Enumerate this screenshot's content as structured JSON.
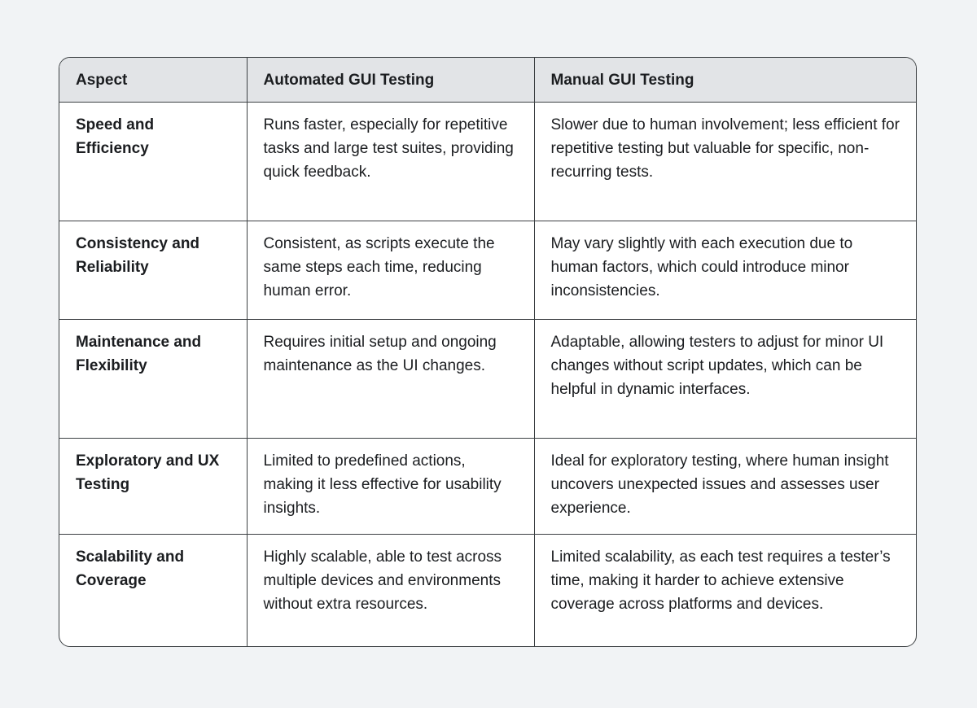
{
  "page": {
    "background_color": "#f1f3f5"
  },
  "table": {
    "colors": {
      "header_bg": "#e2e4e7",
      "body_bg": "#ffffff",
      "border": "#3c4043",
      "text": "#1b1d20"
    },
    "columns": [
      {
        "label": "Aspect"
      },
      {
        "label": "Automated GUI Testing"
      },
      {
        "label": "Manual GUI Testing"
      }
    ],
    "rows": [
      {
        "aspect": "Speed and Efficiency",
        "automated": "Runs faster, especially for repetitive tasks and large test suites, providing quick feedback.",
        "manual": "Slower due to human involvement; less efficient for repetitive testing but valuable for specific, non-recurring tests."
      },
      {
        "aspect": "Consistency and Reliability",
        "automated": "Consistent, as scripts execute the same steps each time, reducing human error.",
        "manual": "May vary slightly with each execution due to human factors, which could introduce minor inconsistencies."
      },
      {
        "aspect": "Maintenance and Flexibility",
        "automated": "Requires initial setup and ongoing maintenance as the UI changes.",
        "manual": "Adaptable, allowing testers to adjust for minor UI changes without script updates, which can be helpful in dynamic interfaces."
      },
      {
        "aspect": "Exploratory and UX Testing",
        "automated": "Limited to predefined actions, making it less effective for usability insights.",
        "manual": "Ideal for exploratory testing, where human insight uncovers unexpected issues and assesses user experience."
      },
      {
        "aspect": "Scalability and Coverage",
        "automated": "Highly scalable, able to test across multiple devices and environments without extra resources.",
        "manual": "Limited scalability, as each test requires a tester’s time, making it harder to achieve extensive coverage across platforms and devices."
      }
    ]
  }
}
